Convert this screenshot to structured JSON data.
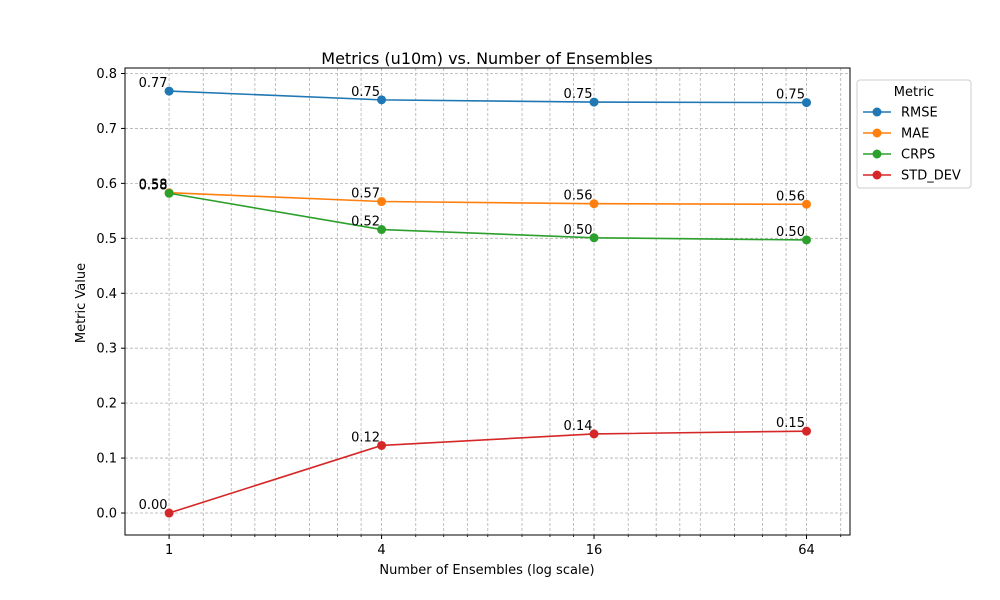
{
  "chart_data": {
    "type": "line",
    "title": "Metrics (u10m) vs. Number of Ensembles",
    "xlabel": "Number of Ensembles (log scale)",
    "ylabel": "Metric Value",
    "x_scale": "log2",
    "x": [
      1,
      4,
      16,
      64
    ],
    "x_tick_labels": [
      "1",
      "4",
      "16",
      "64"
    ],
    "ylim": [
      -0.04,
      0.81
    ],
    "y_ticks": [
      0.0,
      0.1,
      0.2,
      0.3,
      0.4,
      0.5,
      0.6,
      0.7,
      0.8
    ],
    "y_tick_labels": [
      "0.0",
      "0.1",
      "0.2",
      "0.3",
      "0.4",
      "0.5",
      "0.6",
      "0.7",
      "0.8"
    ],
    "grid": true,
    "legend": {
      "title": "Metric",
      "placement": "outside-right-top"
    },
    "series": [
      {
        "name": "RMSE",
        "color": "#1f77b4",
        "values": [
          0.768,
          0.752,
          0.748,
          0.747
        ],
        "labels": [
          "0.77",
          "0.75",
          "0.75",
          "0.75"
        ]
      },
      {
        "name": "MAE",
        "color": "#ff7f0e",
        "values": [
          0.583,
          0.567,
          0.563,
          0.562
        ],
        "labels": [
          "0.58",
          "0.57",
          "0.56",
          "0.56"
        ]
      },
      {
        "name": "CRPS",
        "color": "#2ca02c",
        "values": [
          0.582,
          0.516,
          0.501,
          0.497
        ],
        "labels": [
          "0.58",
          "0.52",
          "0.50",
          "0.50"
        ]
      },
      {
        "name": "STD_DEV",
        "color": "#d62728",
        "values": [
          0.0,
          0.123,
          0.144,
          0.149
        ],
        "labels": [
          "0.00",
          "0.12",
          "0.14",
          "0.15"
        ]
      }
    ]
  }
}
